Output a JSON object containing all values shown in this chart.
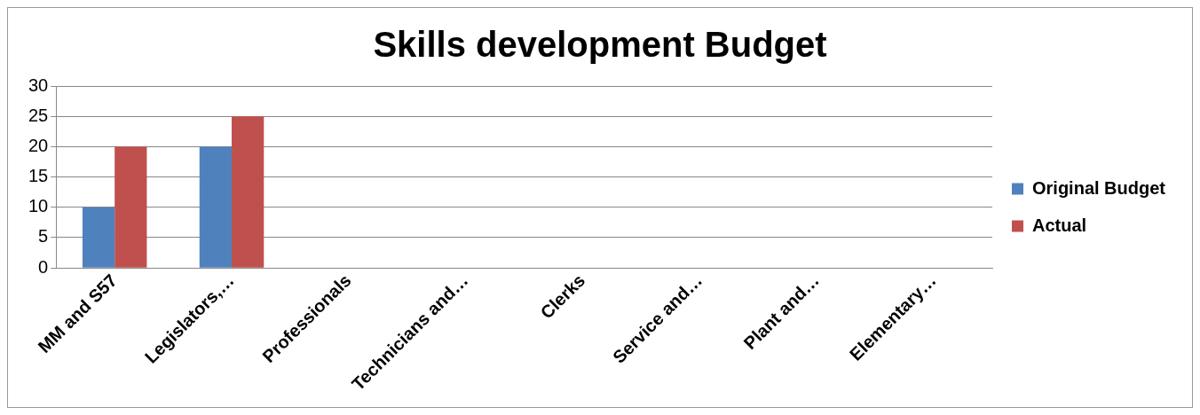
{
  "chart_data": {
    "type": "bar",
    "title": "Skills development Budget",
    "categories": [
      "MM and S57",
      "Legislators,…",
      "Professionals",
      "Technicians and…",
      "Clerks",
      "Service and…",
      "Plant and…",
      "Elementary…"
    ],
    "series": [
      {
        "name": "Original Budget",
        "color": "#4f81bd",
        "values": [
          10,
          20,
          0,
          0,
          0,
          0,
          0,
          0
        ]
      },
      {
        "name": "Actual",
        "color": "#c0504d",
        "values": [
          20,
          25,
          0,
          0,
          0,
          0,
          0,
          0
        ]
      }
    ],
    "ylim": [
      0,
      30
    ],
    "yticks": [
      0,
      5,
      10,
      15,
      20,
      25,
      30
    ],
    "grid": "y",
    "legend": "right"
  }
}
